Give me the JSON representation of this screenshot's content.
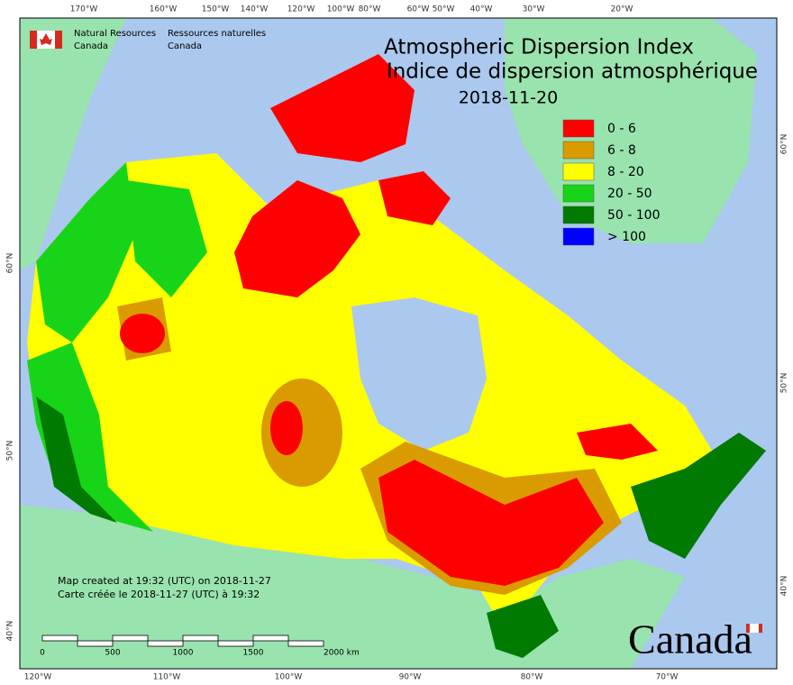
{
  "agency_en": [
    "Natural Resources",
    "Canada"
  ],
  "agency_fr": [
    "Ressources naturelles",
    "Canada"
  ],
  "title": [
    "Atmospheric Dispersion Index",
    "Indice de dispersion atmosphérique"
  ],
  "date": "2018-11-20",
  "legend": [
    {
      "label": "0 - 6",
      "color": "#ff0000"
    },
    {
      "label": "6 - 8",
      "color": "#d99b00"
    },
    {
      "label": "8 - 20",
      "color": "#ffff00"
    },
    {
      "label": "20 - 50",
      "color": "#18d418"
    },
    {
      "label": "50 - 100",
      "color": "#007a00"
    },
    {
      "label": "> 100",
      "color": "#0000ff"
    }
  ],
  "credits": [
    "Map created at 19:32 (UTC) on 2018-11-27",
    "Carte créée le 2018-11-27 (UTC) à 19:32"
  ],
  "scale_bar": [
    "0",
    "500",
    "1000",
    "1500",
    "2000 km"
  ],
  "top_lon_labels": [
    "170°W",
    "160°W",
    "150°W",
    "140°W",
    "120°W",
    "100°W",
    "80°W",
    "60°W",
    "50°W",
    "40°W",
    "30°W",
    "20°W"
  ],
  "bottom_lon_labels": [
    "120°W",
    "110°W",
    "100°W",
    "90°W",
    "80°W",
    "70°W"
  ],
  "left_lat_labels": [
    "60°N",
    "50°N",
    "40°N"
  ],
  "right_lat_labels": [
    "60°N",
    "50°N",
    "40°N"
  ],
  "wordmark": "Canada"
}
